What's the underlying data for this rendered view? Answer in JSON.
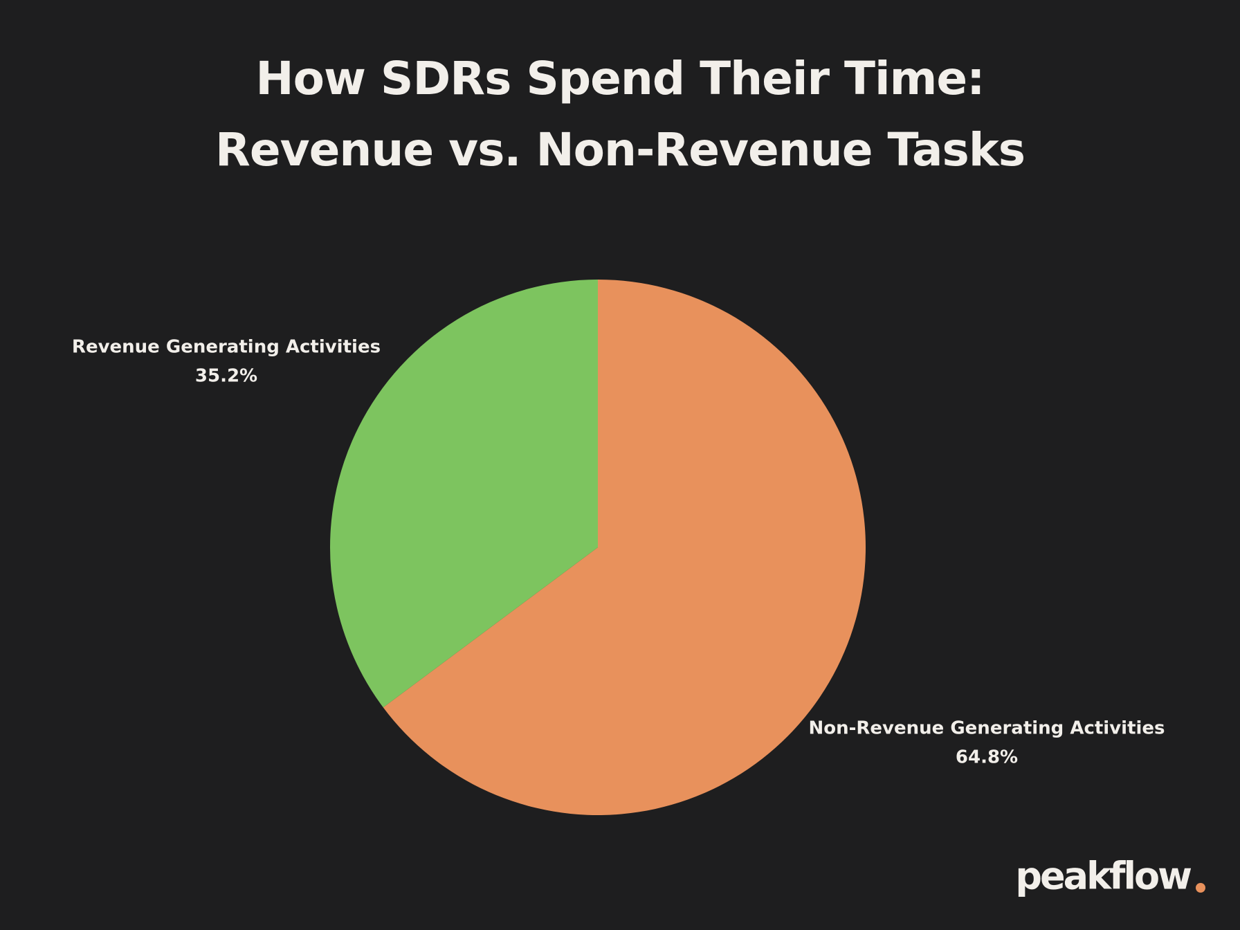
{
  "chart_data": {
    "type": "pie",
    "title": [
      "How SDRs Spend Their Time:",
      "Revenue vs. Non-Revenue Tasks"
    ],
    "categories": [
      "Non-Revenue Generating Activities",
      "Revenue Generating Activities"
    ],
    "values": [
      64.8,
      35.2
    ],
    "value_labels": [
      "64.8%",
      "35.2%"
    ],
    "colors": [
      "#e8915c",
      "#7dc45f"
    ]
  },
  "brand": "peakflow"
}
